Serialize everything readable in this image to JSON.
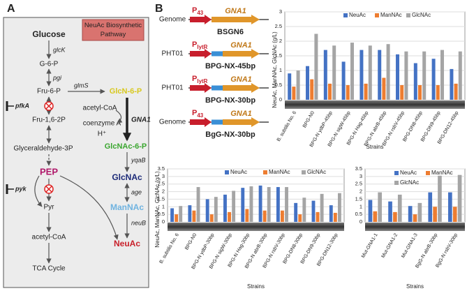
{
  "panel_a": {
    "label": "A",
    "title": "NeuAc Biosynthetic Pathway",
    "nodes": [
      "Glucose",
      "G-6-P",
      "Fru-6-P",
      "Fru-1,6-2P",
      "Glyceraldehyde-3P",
      "PEP",
      "Pyr",
      "acetyl-CoA",
      "TCA Cycle",
      "GlcN-6-P",
      "acetyl-CoA",
      "coenzyme A",
      "H⁺",
      "GlcNAc-6-P",
      "GlcNAc",
      "ManNAc",
      "NeuAc"
    ],
    "enzymes": [
      "glcK",
      "pgi",
      "glmS",
      "pfkA",
      "GNA1",
      "yqaB",
      "age",
      "neuB",
      "pyk"
    ]
  },
  "panel_b": {
    "label": "B",
    "constructs": [
      {
        "locus": "Genome",
        "promoter": "P",
        "promoter_sub": "43",
        "gene": "GNA1",
        "strain": "BSGN6",
        "spacer": false
      },
      {
        "locus": "PHT01",
        "promoter": "P",
        "promoter_sub": "lytR",
        "gene": "GNA1",
        "strain": "BPG-NX-45bp",
        "spacer": true
      },
      {
        "locus": "PHT01",
        "promoter": "P",
        "promoter_sub": "lytR",
        "gene": "GNA1",
        "strain": "BPG-NX-30bp",
        "spacer": true
      },
      {
        "locus": "Genome",
        "promoter": "P",
        "promoter_sub": "43",
        "gene": "GNA1",
        "strain": "BgG-NX-30bp",
        "spacer": true
      }
    ]
  },
  "chart_data": [
    {
      "type": "bar",
      "y_label": "NeuAc, ManNAc, GlcNAc (g/L)",
      "x_label": "Strains",
      "legend": "top",
      "grid": true,
      "categories": [
        "B. subtilis No. 6",
        "BPG-N0",
        "BPG-N ydbP-45bp",
        "BPG-N sigW-45bp",
        "BPG-N Hag-45bp",
        "BPG-N abrB-45bp",
        "BPG-N rsbV-45bp",
        "BPG-DN8-45bp",
        "BPG-DN9-45bp",
        "BPG-DN12-45bp"
      ],
      "series": [
        {
          "name": "NeuAc",
          "color": "#4472c4",
          "values": [
            0.9,
            1.15,
            1.7,
            1.3,
            1.7,
            1.7,
            1.55,
            1.25,
            1.4,
            1.05
          ]
        },
        {
          "name": "ManNAc",
          "color": "#ed7d31",
          "values": [
            0.45,
            0.7,
            0.55,
            0.5,
            0.55,
            0.75,
            0.5,
            0.5,
            0.5,
            0.55
          ]
        },
        {
          "name": "GlcNAc",
          "color": "#a5a5a5",
          "values": [
            1.0,
            2.25,
            1.85,
            1.95,
            1.85,
            1.9,
            1.65,
            1.65,
            1.7,
            1.65
          ]
        }
      ],
      "ylim": [
        0,
        3
      ],
      "yticks": [
        0,
        0.5,
        1,
        1.5,
        2,
        2.5,
        3
      ]
    },
    {
      "type": "bar",
      "y_label": "NeuAc, ManNAc, GlcNAc (g/L)",
      "x_label": "Strains",
      "legend": "top",
      "grid": true,
      "categories": [
        "B. subtilis No. 6",
        "BPG-N0",
        "BPG-N ydbP-30bp",
        "BPG-N sigW-30bp",
        "BPG-N Hag-30bp",
        "BPG-N abrB-30bp",
        "BPG-N rsbV-30bp",
        "BPG-DN8-30bp",
        "BPG-DN9-30bp",
        "BPG-DN12-30bp"
      ],
      "series": [
        {
          "name": "NeuAc",
          "color": "#4472c4",
          "values": [
            0.9,
            1.1,
            1.5,
            1.8,
            2.25,
            2.4,
            2.3,
            1.25,
            1.4,
            1.1
          ]
        },
        {
          "name": "ManNAc",
          "color": "#ed7d31",
          "values": [
            0.5,
            0.75,
            0.5,
            0.65,
            0.85,
            0.75,
            0.75,
            0.5,
            0.65,
            0.6
          ]
        },
        {
          "name": "GlcNAc",
          "color": "#a5a5a5",
          "values": [
            1.05,
            2.3,
            1.65,
            2.05,
            2.35,
            2.3,
            2.3,
            1.6,
            1.85,
            1.9
          ]
        }
      ],
      "ylim": [
        0,
        3.5
      ],
      "yticks": [
        0,
        0.5,
        1,
        1.5,
        2,
        2.5,
        3,
        3.5
      ]
    },
    {
      "type": "bar",
      "x_label": "Strains",
      "legend": "top",
      "grid": true,
      "categories": [
        "Mut-GNA1-1",
        "Mut-GNA1-2",
        "Mut-GNA1-3",
        "BgG-N abrB-30bp",
        "BgG-N rsbV-30bp"
      ],
      "series": [
        {
          "name": "NeuAc",
          "color": "#4472c4",
          "values": [
            1.45,
            1.35,
            1.05,
            1.95,
            1.95
          ]
        },
        {
          "name": "ManNAc",
          "color": "#ed7d31",
          "values": [
            0.7,
            0.65,
            0.5,
            1.0,
            1.0
          ]
        },
        {
          "name": "GlcNAc",
          "color": "#a5a5a5",
          "values": [
            1.95,
            1.8,
            1.25,
            3.05,
            3.1
          ]
        }
      ],
      "ylim": [
        0,
        3.5
      ],
      "yticks": [
        0,
        0.5,
        1,
        1.5,
        2,
        2.5,
        3,
        3.5
      ]
    }
  ]
}
